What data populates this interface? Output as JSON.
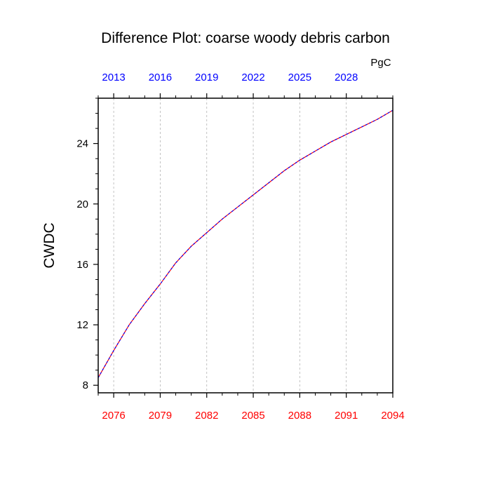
{
  "chart_data": {
    "type": "line",
    "title": "Difference Plot: coarse woody debris carbon",
    "ylabel": "CWDC",
    "units_label": "PgC",
    "xlabel": "",
    "xlim": [
      2075,
      2094
    ],
    "ylim": [
      7.5,
      27.0
    ],
    "grid": "vertical dashed at bottom-axis ticks",
    "bottom_axis": {
      "color": "#ff0000",
      "ticks": [
        2076,
        2079,
        2082,
        2085,
        2088,
        2091,
        2094
      ],
      "tick_labels": [
        "2076",
        "2079",
        "2082",
        "2085",
        "2088",
        "2091",
        "2094"
      ]
    },
    "top_axis": {
      "color": "#0000ff",
      "ticks": [
        2013,
        2016,
        2019,
        2022,
        2025,
        2028
      ],
      "tick_labels": [
        "2013",
        "2016",
        "2019",
        "2022",
        "2025",
        "2028"
      ],
      "range": [
        2012,
        2031
      ]
    },
    "y_ticks": [
      8,
      12,
      16,
      20,
      24
    ],
    "y_tick_labels": [
      "8",
      "12",
      "16",
      "20",
      "24"
    ],
    "series": [
      {
        "color_solid": "#ff0000",
        "color_dash": "#0000ff",
        "x": [
          2075,
          2076,
          2077,
          2078,
          2079,
          2080,
          2081,
          2082,
          2083,
          2084,
          2085,
          2086,
          2087,
          2088,
          2089,
          2090,
          2091,
          2092,
          2093,
          2094
        ],
        "y": [
          8.5,
          10.3,
          12.0,
          13.4,
          14.7,
          16.1,
          17.2,
          18.1,
          19.0,
          19.8,
          20.6,
          21.4,
          22.2,
          22.9,
          23.5,
          24.1,
          24.6,
          25.1,
          25.6,
          26.2
        ]
      }
    ]
  }
}
